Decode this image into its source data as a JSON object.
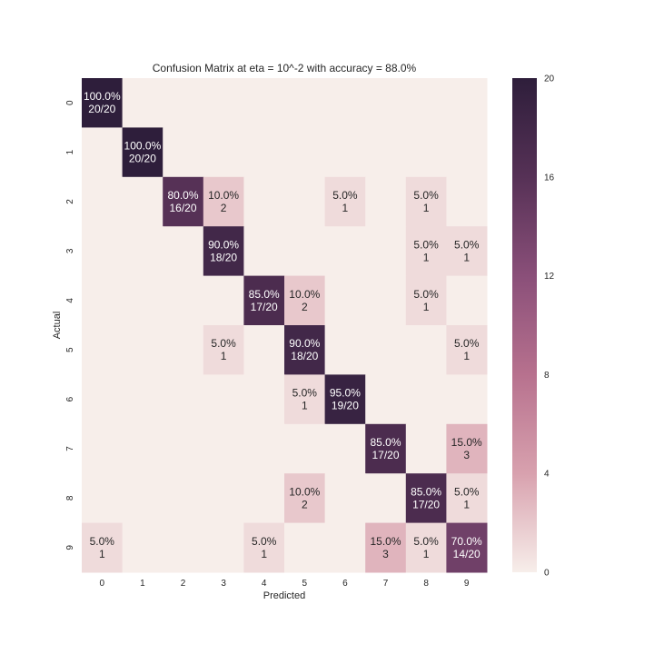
{
  "chart_data": {
    "type": "heatmap",
    "title": "Confusion Matrix at eta = 10^-2 with accuracy = 88.0%",
    "xlabel": "Predicted",
    "ylabel": "Actual",
    "x_categories": [
      "0",
      "1",
      "2",
      "3",
      "4",
      "5",
      "6",
      "7",
      "8",
      "9"
    ],
    "y_categories": [
      "0",
      "1",
      "2",
      "3",
      "4",
      "5",
      "6",
      "7",
      "8",
      "9"
    ],
    "per_class_total": 20,
    "matrix": [
      [
        20,
        0,
        0,
        0,
        0,
        0,
        0,
        0,
        0,
        0
      ],
      [
        0,
        20,
        0,
        0,
        0,
        0,
        0,
        0,
        0,
        0
      ],
      [
        0,
        0,
        16,
        2,
        0,
        0,
        1,
        0,
        1,
        0
      ],
      [
        0,
        0,
        0,
        18,
        0,
        0,
        0,
        0,
        1,
        1
      ],
      [
        0,
        0,
        0,
        0,
        17,
        2,
        0,
        0,
        1,
        0
      ],
      [
        0,
        0,
        0,
        1,
        0,
        18,
        0,
        0,
        0,
        1
      ],
      [
        0,
        0,
        0,
        0,
        0,
        1,
        19,
        0,
        0,
        0
      ],
      [
        0,
        0,
        0,
        0,
        0,
        0,
        0,
        17,
        0,
        3
      ],
      [
        0,
        0,
        0,
        0,
        0,
        2,
        0,
        0,
        17,
        1
      ],
      [
        1,
        0,
        0,
        0,
        1,
        0,
        0,
        3,
        1,
        14
      ]
    ],
    "annotations": [
      [
        {
          "pct": "100.0%",
          "count": "20/20"
        },
        null,
        null,
        null,
        null,
        null,
        null,
        null,
        null,
        null
      ],
      [
        null,
        {
          "pct": "100.0%",
          "count": "20/20"
        },
        null,
        null,
        null,
        null,
        null,
        null,
        null,
        null
      ],
      [
        null,
        null,
        {
          "pct": "80.0%",
          "count": "16/20"
        },
        {
          "pct": "10.0%",
          "count": "2"
        },
        null,
        null,
        {
          "pct": "5.0%",
          "count": "1"
        },
        null,
        {
          "pct": "5.0%",
          "count": "1"
        },
        null
      ],
      [
        null,
        null,
        null,
        {
          "pct": "90.0%",
          "count": "18/20"
        },
        null,
        null,
        null,
        null,
        {
          "pct": "5.0%",
          "count": "1"
        },
        {
          "pct": "5.0%",
          "count": "1"
        }
      ],
      [
        null,
        null,
        null,
        null,
        {
          "pct": "85.0%",
          "count": "17/20"
        },
        {
          "pct": "10.0%",
          "count": "2"
        },
        null,
        null,
        {
          "pct": "5.0%",
          "count": "1"
        },
        null
      ],
      [
        null,
        null,
        null,
        {
          "pct": "5.0%",
          "count": "1"
        },
        null,
        {
          "pct": "90.0%",
          "count": "18/20"
        },
        null,
        null,
        null,
        {
          "pct": "5.0%",
          "count": "1"
        }
      ],
      [
        null,
        null,
        null,
        null,
        null,
        {
          "pct": "5.0%",
          "count": "1"
        },
        {
          "pct": "95.0%",
          "count": "19/20"
        },
        null,
        null,
        null
      ],
      [
        null,
        null,
        null,
        null,
        null,
        null,
        null,
        {
          "pct": "85.0%",
          "count": "17/20"
        },
        null,
        {
          "pct": "15.0%",
          "count": "3"
        }
      ],
      [
        null,
        null,
        null,
        null,
        null,
        {
          "pct": "10.0%",
          "count": "2"
        },
        null,
        null,
        {
          "pct": "85.0%",
          "count": "17/20"
        },
        {
          "pct": "5.0%",
          "count": "1"
        }
      ],
      [
        {
          "pct": "5.0%",
          "count": "1"
        },
        null,
        null,
        null,
        {
          "pct": "5.0%",
          "count": "1"
        },
        null,
        null,
        {
          "pct": "15.0%",
          "count": "3"
        },
        {
          "pct": "5.0%",
          "count": "1"
        },
        {
          "pct": "70.0%",
          "count": "14/20"
        }
      ]
    ],
    "colorbar": {
      "range": [
        0,
        20
      ],
      "ticks": [
        "0",
        "4",
        "8",
        "12",
        "16",
        "20"
      ],
      "colors": [
        "#f7eeea",
        "#d8a1ae",
        "#b7718e",
        "#8a4f79",
        "#563156",
        "#2e1e3b"
      ]
    },
    "grid": false,
    "legend": "colorbar right"
  }
}
